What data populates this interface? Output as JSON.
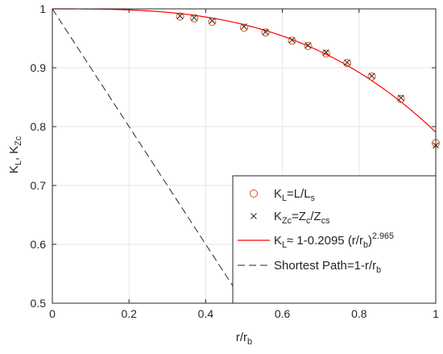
{
  "chart_data": {
    "type": "scatter",
    "xlabel": "r/r",
    "xlabel_sub": "b",
    "ylabel_parts": [
      "K",
      "L",
      ", K",
      "Zc"
    ],
    "xlim": [
      0,
      1
    ],
    "ylim": [
      0.5,
      1
    ],
    "xticks": [
      0,
      0.2,
      0.4,
      0.6,
      0.8,
      1
    ],
    "yticks": [
      0.5,
      0.6,
      0.7,
      0.8,
      0.9,
      1
    ],
    "xtick_labels": [
      "0",
      "0.2",
      "0.4",
      "0.6",
      "0.8",
      "1"
    ],
    "ytick_labels": [
      "0.5",
      "0.6",
      "0.7",
      "0.8",
      "0.9",
      "1"
    ],
    "grid": true,
    "legend_position": "bottom-right",
    "series": [
      {
        "name": "K_L=L/L_s",
        "marker": "circle",
        "color": "#d95319",
        "x": [
          0.333,
          0.37,
          0.417,
          0.5,
          0.556,
          0.625,
          0.667,
          0.714,
          0.769,
          0.833,
          0.909,
          1.0
        ],
        "y": [
          0.987,
          0.984,
          0.978,
          0.968,
          0.96,
          0.946,
          0.937,
          0.924,
          0.908,
          0.885,
          0.847,
          0.772
        ]
      },
      {
        "name": "K_Zc=Z_c/Z_cs",
        "marker": "x",
        "color": "#262626",
        "x": [
          0.333,
          0.37,
          0.417,
          0.5,
          0.556,
          0.625,
          0.667,
          0.714,
          0.769,
          0.833,
          0.909,
          1.0
        ],
        "y": [
          0.988,
          0.985,
          0.98,
          0.97,
          0.961,
          0.947,
          0.938,
          0.926,
          0.909,
          0.886,
          0.849,
          0.768
        ]
      },
      {
        "name": "K_L≈ 1-0.2095 (r/r_b)^2.965",
        "line": "solid",
        "color": "#ff0000",
        "coefficient": 0.2095,
        "exponent": 2.965
      },
      {
        "name": "Shortest Path=1-r/r_b",
        "line": "dashed",
        "color": "#262626"
      }
    ],
    "legend": [
      {
        "parts": [
          "K",
          "L",
          "=L/L",
          "s"
        ],
        "sub": [
          1,
          3
        ]
      },
      {
        "parts": [
          "K",
          "Zc",
          "=Z",
          "c",
          "/Z",
          "cs"
        ],
        "sub": [
          1,
          3,
          5
        ]
      },
      {
        "parts": [
          "K",
          "L",
          "≈ 1-0.2095 (r/r",
          "b",
          ")",
          "2.965"
        ],
        "sub": [
          1,
          3
        ],
        "sup": [
          5
        ]
      },
      {
        "parts": [
          "Shortest Path=1-r/r",
          "b"
        ],
        "sub": [
          1
        ]
      }
    ]
  }
}
